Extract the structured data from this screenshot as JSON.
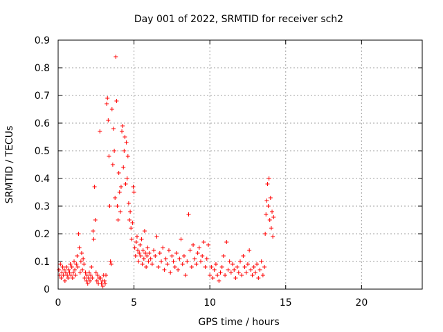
{
  "chart_data": {
    "type": "scatter",
    "title": "Day 001 of 2022, SRMTID for receiver sch2",
    "xlabel": "GPS time / hours",
    "ylabel": "SRMTID / TECUs",
    "xlim": [
      0,
      24
    ],
    "ylim": [
      0,
      0.9
    ],
    "xticks": [
      0,
      5,
      10,
      15,
      20
    ],
    "yticks": [
      0,
      0.1,
      0.2,
      0.3,
      0.4,
      0.5,
      0.6,
      0.7,
      0.8,
      0.9
    ],
    "xtick_labels": [
      "0",
      "5",
      "10",
      "15",
      "20"
    ],
    "ytick_labels": [
      "0",
      "0.1",
      "0.2",
      "0.3",
      "0.4",
      "0.5",
      "0.6",
      "0.7",
      "0.8",
      "0.9"
    ],
    "grid": true,
    "marker": "+",
    "color": "#ff0000",
    "series": [
      {
        "name": "sch2",
        "points": [
          [
            0.05,
            0.07
          ],
          [
            0.1,
            0.05
          ],
          [
            0.15,
            0.09
          ],
          [
            0.2,
            0.04
          ],
          [
            0.25,
            0.06
          ],
          [
            0.3,
            0.08
          ],
          [
            0.35,
            0.05
          ],
          [
            0.4,
            0.07
          ],
          [
            0.45,
            0.03
          ],
          [
            0.5,
            0.06
          ],
          [
            0.55,
            0.08
          ],
          [
            0.6,
            0.05
          ],
          [
            0.65,
            0.04
          ],
          [
            0.7,
            0.07
          ],
          [
            0.75,
            0.06
          ],
          [
            0.8,
            0.09
          ],
          [
            0.85,
            0.05
          ],
          [
            0.9,
            0.08
          ],
          [
            0.95,
            0.04
          ],
          [
            1.0,
            0.06
          ],
          [
            1.05,
            0.1
          ],
          [
            1.1,
            0.07
          ],
          [
            1.15,
            0.05
          ],
          [
            1.2,
            0.09
          ],
          [
            1.25,
            0.12
          ],
          [
            1.3,
            0.08
          ],
          [
            1.35,
            0.2
          ],
          [
            1.4,
            0.15
          ],
          [
            1.45,
            0.06
          ],
          [
            1.5,
            0.1
          ],
          [
            1.55,
            0.13
          ],
          [
            1.6,
            0.07
          ],
          [
            1.65,
            0.11
          ],
          [
            1.7,
            0.09
          ],
          [
            1.75,
            0.04
          ],
          [
            1.8,
            0.06
          ],
          [
            1.85,
            0.03
          ],
          [
            1.9,
            0.05
          ],
          [
            1.95,
            0.02
          ],
          [
            2.0,
            0.04
          ],
          [
            2.05,
            0.06
          ],
          [
            2.1,
            0.03
          ],
          [
            2.15,
            0.05
          ],
          [
            2.2,
            0.08
          ],
          [
            2.25,
            0.04
          ],
          [
            2.3,
            0.21
          ],
          [
            2.35,
            0.18
          ],
          [
            2.4,
            0.37
          ],
          [
            2.45,
            0.25
          ],
          [
            2.5,
            0.06
          ],
          [
            2.55,
            0.03
          ],
          [
            2.6,
            0.05
          ],
          [
            2.65,
            0.02
          ],
          [
            2.7,
            0.04
          ],
          [
            2.75,
            0.57
          ],
          [
            2.8,
            0.04
          ],
          [
            2.85,
            0.02
          ],
          [
            2.9,
            0.03
          ],
          [
            2.95,
            0.01
          ],
          [
            3.0,
            0.05
          ],
          [
            3.05,
            0.03
          ],
          [
            3.1,
            0.02
          ],
          [
            3.15,
            0.05
          ],
          [
            3.2,
            0.67
          ],
          [
            3.25,
            0.69
          ],
          [
            3.3,
            0.61
          ],
          [
            3.35,
            0.48
          ],
          [
            3.4,
            0.3
          ],
          [
            3.45,
            0.1
          ],
          [
            3.5,
            0.09
          ],
          [
            3.55,
            0.65
          ],
          [
            3.6,
            0.45
          ],
          [
            3.65,
            0.58
          ],
          [
            3.7,
            0.5
          ],
          [
            3.75,
            0.33
          ],
          [
            3.8,
            0.84
          ],
          [
            3.85,
            0.68
          ],
          [
            3.9,
            0.3
          ],
          [
            3.95,
            0.25
          ],
          [
            4.0,
            0.42
          ],
          [
            4.05,
            0.35
          ],
          [
            4.1,
            0.28
          ],
          [
            4.15,
            0.37
          ],
          [
            4.2,
            0.57
          ],
          [
            4.25,
            0.59
          ],
          [
            4.3,
            0.44
          ],
          [
            4.35,
            0.5
          ],
          [
            4.4,
            0.55
          ],
          [
            4.45,
            0.38
          ],
          [
            4.5,
            0.53
          ],
          [
            4.55,
            0.4
          ],
          [
            4.6,
            0.48
          ],
          [
            4.65,
            0.31
          ],
          [
            4.7,
            0.25
          ],
          [
            4.75,
            0.28
          ],
          [
            4.8,
            0.22
          ],
          [
            4.85,
            0.18
          ],
          [
            4.9,
            0.24
          ],
          [
            4.95,
            0.37
          ],
          [
            5.0,
            0.35
          ],
          [
            5.05,
            0.15
          ],
          [
            5.1,
            0.12
          ],
          [
            5.15,
            0.17
          ],
          [
            5.2,
            0.19
          ],
          [
            5.25,
            0.14
          ],
          [
            5.3,
            0.1
          ],
          [
            5.35,
            0.13
          ],
          [
            5.4,
            0.16
          ],
          [
            5.45,
            0.12
          ],
          [
            5.5,
            0.18
          ],
          [
            5.55,
            0.09
          ],
          [
            5.6,
            0.14
          ],
          [
            5.65,
            0.11
          ],
          [
            5.7,
            0.21
          ],
          [
            5.75,
            0.13
          ],
          [
            5.8,
            0.08
          ],
          [
            5.85,
            0.12
          ],
          [
            5.9,
            0.15
          ],
          [
            5.95,
            0.1
          ],
          [
            6.0,
            0.13
          ],
          [
            6.1,
            0.11
          ],
          [
            6.2,
            0.09
          ],
          [
            6.3,
            0.14
          ],
          [
            6.4,
            0.12
          ],
          [
            6.5,
            0.19
          ],
          [
            6.6,
            0.08
          ],
          [
            6.7,
            0.13
          ],
          [
            6.8,
            0.1
          ],
          [
            6.9,
            0.15
          ],
          [
            7.0,
            0.07
          ],
          [
            7.1,
            0.11
          ],
          [
            7.2,
            0.09
          ],
          [
            7.3,
            0.14
          ],
          [
            7.4,
            0.06
          ],
          [
            7.5,
            0.12
          ],
          [
            7.6,
            0.1
          ],
          [
            7.7,
            0.08
          ],
          [
            7.8,
            0.13
          ],
          [
            7.9,
            0.07
          ],
          [
            8.0,
            0.11
          ],
          [
            8.1,
            0.18
          ],
          [
            8.2,
            0.09
          ],
          [
            8.3,
            0.12
          ],
          [
            8.4,
            0.05
          ],
          [
            8.5,
            0.1
          ],
          [
            8.6,
            0.27
          ],
          [
            8.7,
            0.14
          ],
          [
            8.8,
            0.08
          ],
          [
            8.9,
            0.16
          ],
          [
            9.0,
            0.11
          ],
          [
            9.1,
            0.09
          ],
          [
            9.2,
            0.13
          ],
          [
            9.3,
            0.15
          ],
          [
            9.4,
            0.1
          ],
          [
            9.5,
            0.12
          ],
          [
            9.6,
            0.17
          ],
          [
            9.7,
            0.08
          ],
          [
            9.8,
            0.11
          ],
          [
            9.9,
            0.16
          ],
          [
            10.0,
            0.05
          ],
          [
            10.1,
            0.08
          ],
          [
            10.2,
            0.04
          ],
          [
            10.3,
            0.07
          ],
          [
            10.4,
            0.09
          ],
          [
            10.5,
            0.05
          ],
          [
            10.6,
            0.03
          ],
          [
            10.7,
            0.06
          ],
          [
            10.8,
            0.08
          ],
          [
            10.9,
            0.12
          ],
          [
            11.0,
            0.05
          ],
          [
            11.1,
            0.17
          ],
          [
            11.2,
            0.07
          ],
          [
            11.3,
            0.1
          ],
          [
            11.4,
            0.06
          ],
          [
            11.5,
            0.09
          ],
          [
            11.6,
            0.07
          ],
          [
            11.7,
            0.04
          ],
          [
            11.8,
            0.08
          ],
          [
            11.9,
            0.06
          ],
          [
            12.0,
            0.1
          ],
          [
            12.1,
            0.05
          ],
          [
            12.2,
            0.12
          ],
          [
            12.3,
            0.08
          ],
          [
            12.4,
            0.06
          ],
          [
            12.5,
            0.09
          ],
          [
            12.6,
            0.14
          ],
          [
            12.7,
            0.07
          ],
          [
            12.8,
            0.05
          ],
          [
            12.9,
            0.08
          ],
          [
            13.0,
            0.06
          ],
          [
            13.1,
            0.09
          ],
          [
            13.2,
            0.04
          ],
          [
            13.3,
            0.07
          ],
          [
            13.4,
            0.1
          ],
          [
            13.5,
            0.05
          ],
          [
            13.6,
            0.08
          ],
          [
            13.65,
            0.2
          ],
          [
            13.7,
            0.27
          ],
          [
            13.75,
            0.32
          ],
          [
            13.8,
            0.38
          ],
          [
            13.85,
            0.3
          ],
          [
            13.9,
            0.4
          ],
          [
            13.95,
            0.25
          ],
          [
            14.0,
            0.33
          ],
          [
            14.05,
            0.22
          ],
          [
            14.1,
            0.28
          ],
          [
            14.15,
            0.19
          ],
          [
            14.2,
            0.26
          ]
        ]
      }
    ]
  }
}
